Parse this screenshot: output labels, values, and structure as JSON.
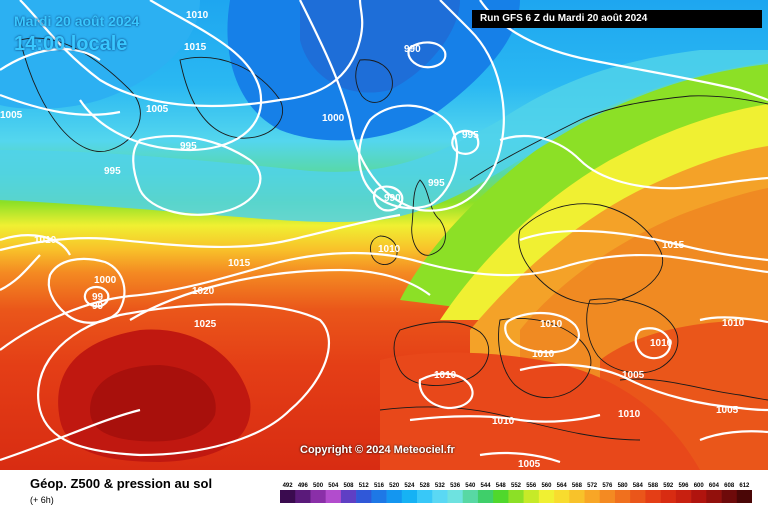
{
  "header": {
    "date_label": "Mardi 20 août 2024",
    "time_label": "14:00 locale",
    "run_label": "Run GFS 6 Z du Mardi 20 août 2024"
  },
  "map": {
    "copyright": "Copyright © 2024 Meteociel.fr",
    "pressure_labels": [
      "1010",
      "1015",
      "1005",
      "995",
      "995",
      "1000",
      "995",
      "990",
      "990",
      "995",
      "1005",
      "1010",
      "1010",
      "1015",
      "1000",
      "99",
      "99",
      "1020",
      "1025",
      "1015",
      "1010",
      "1010",
      "1010",
      "1010",
      "1010",
      "1005",
      "1010",
      "1010",
      "1005",
      "1005"
    ]
  },
  "legend": {
    "title": "Géop. Z500 & pression au sol",
    "subtitle": "(+ 6h)",
    "ticks": [
      "492",
      "496",
      "500",
      "504",
      "508",
      "512",
      "516",
      "520",
      "524",
      "528",
      "532",
      "536",
      "540",
      "544",
      "548",
      "552",
      "556",
      "560",
      "564",
      "568",
      "572",
      "576",
      "580",
      "584",
      "588",
      "592",
      "596",
      "600",
      "604",
      "608",
      "612"
    ],
    "colors": [
      "#3a0b4f",
      "#5a1a7a",
      "#8a2fa8",
      "#b24ccd",
      "#5f3fc4",
      "#3058d8",
      "#1e78e6",
      "#1496f0",
      "#16b2f4",
      "#38c8f8",
      "#5ad8f4",
      "#6ee2e0",
      "#58d8a4",
      "#3fcf6a",
      "#50d82c",
      "#8ce026",
      "#c6ea28",
      "#f0f032",
      "#f8dc2e",
      "#f8c22a",
      "#f8a626",
      "#f48a22",
      "#f0701e",
      "#ea561a",
      "#e43e16",
      "#d82c12",
      "#c82010",
      "#b0140e",
      "#92100c",
      "#6e0a0a",
      "#4a0606"
    ]
  }
}
